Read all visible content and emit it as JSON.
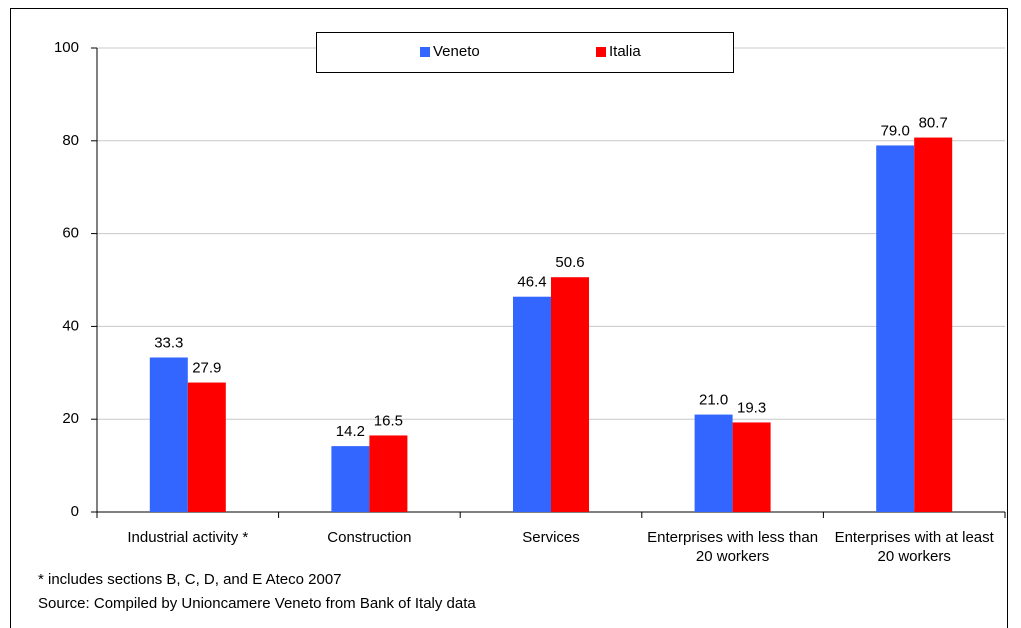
{
  "chart_data": {
    "type": "bar",
    "categories": [
      "Industrial activity *",
      "Construction",
      "Services",
      "Enterprises with less than 20 workers",
      "Enterprises with at least 20 workers"
    ],
    "series": [
      {
        "name": "Veneto",
        "color": "#3366ff",
        "values": [
          33.3,
          14.2,
          46.4,
          21.0,
          79.0
        ],
        "value_labels": [
          "33.3",
          "14.2",
          "46.4",
          "21.0",
          "79.0"
        ]
      },
      {
        "name": "Italia",
        "color": "#ff0000",
        "values": [
          27.9,
          16.5,
          50.6,
          19.3,
          80.7
        ],
        "value_labels": [
          "27.9",
          "16.5",
          "50.6",
          "19.3",
          "80.7"
        ]
      }
    ],
    "ylim": [
      0,
      100
    ],
    "yticks": [
      0,
      20,
      40,
      60,
      80,
      100
    ],
    "grid": true,
    "footnote": "* includes sections B, C, D, and E Ateco 2007",
    "source": "Source: Compiled by Unioncamere Veneto from Bank of Italy data"
  }
}
